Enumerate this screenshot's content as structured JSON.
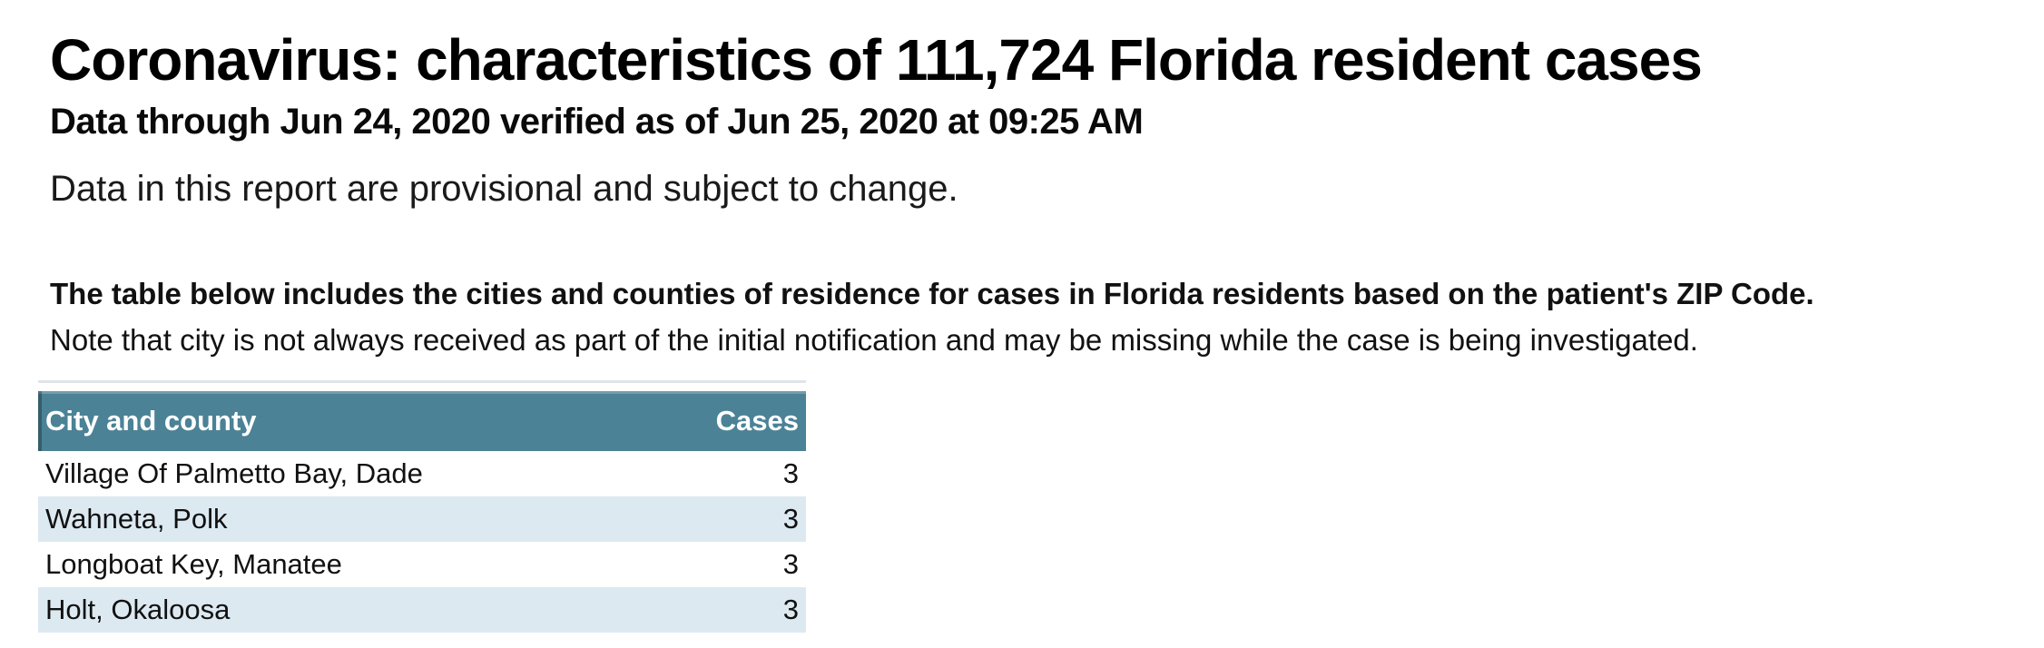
{
  "page": {
    "title": "Coronavirus: characteristics of 111,724 Florida resident cases",
    "subtitle": "Data through Jun 24, 2020 verified as of Jun 25, 2020 at 09:25 AM",
    "provisional_note": "Data in this report are provisional and subject to change.",
    "table_intro_bold": "The table below includes the cities and counties of residence for cases in Florida residents based on the patient's ZIP Code.",
    "table_intro_note": "Note that city is not always received as part of the initial notification and may be missing while the case is being investigated."
  },
  "table": {
    "columns": [
      "City and county",
      "Cases"
    ],
    "rows": [
      {
        "city_county": "Village Of Palmetto Bay, Dade",
        "cases": "3"
      },
      {
        "city_county": "Wahneta, Polk",
        "cases": "3"
      },
      {
        "city_county": "Longboat Key, Manatee",
        "cases": "3"
      },
      {
        "city_county": "Holt, Okaloosa",
        "cases": "3"
      }
    ]
  },
  "colors": {
    "header_bg": "#4b8296",
    "header_text": "#ffffff",
    "row_alt_bg": "#dce9f1",
    "rule": "#dfe5e9",
    "text": "#000000"
  }
}
